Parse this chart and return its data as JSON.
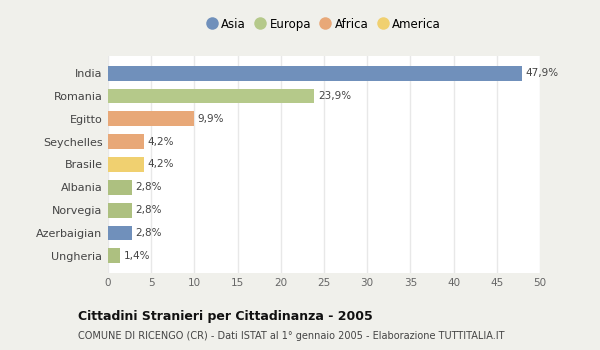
{
  "categories": [
    "India",
    "Romania",
    "Egitto",
    "Seychelles",
    "Brasile",
    "Albania",
    "Norvegia",
    "Azerbaigian",
    "Ungheria"
  ],
  "values": [
    47.9,
    23.9,
    9.9,
    4.2,
    4.2,
    2.8,
    2.8,
    2.8,
    1.4
  ],
  "labels": [
    "47,9%",
    "23,9%",
    "9,9%",
    "4,2%",
    "4,2%",
    "2,8%",
    "2,8%",
    "2,8%",
    "1,4%"
  ],
  "colors": [
    "#7090bb",
    "#b5c98a",
    "#e8a878",
    "#e8a878",
    "#f0d070",
    "#adc080",
    "#adc080",
    "#7090bb",
    "#adc080"
  ],
  "legend": [
    {
      "label": "Asia",
      "color": "#7090bb"
    },
    {
      "label": "Europa",
      "color": "#b5c98a"
    },
    {
      "label": "Africa",
      "color": "#e8a878"
    },
    {
      "label": "America",
      "color": "#f0d070"
    }
  ],
  "xlim": [
    0,
    50
  ],
  "xticks": [
    0,
    5,
    10,
    15,
    20,
    25,
    30,
    35,
    40,
    45,
    50
  ],
  "title": "Cittadini Stranieri per Cittadinanza - 2005",
  "subtitle": "COMUNE DI RICENGO (CR) - Dati ISTAT al 1° gennaio 2005 - Elaborazione TUTTITALIA.IT",
  "fig_bg_color": "#f0f0eb",
  "plot_bg_color": "#ffffff",
  "grid_color": "#e8e8e8"
}
